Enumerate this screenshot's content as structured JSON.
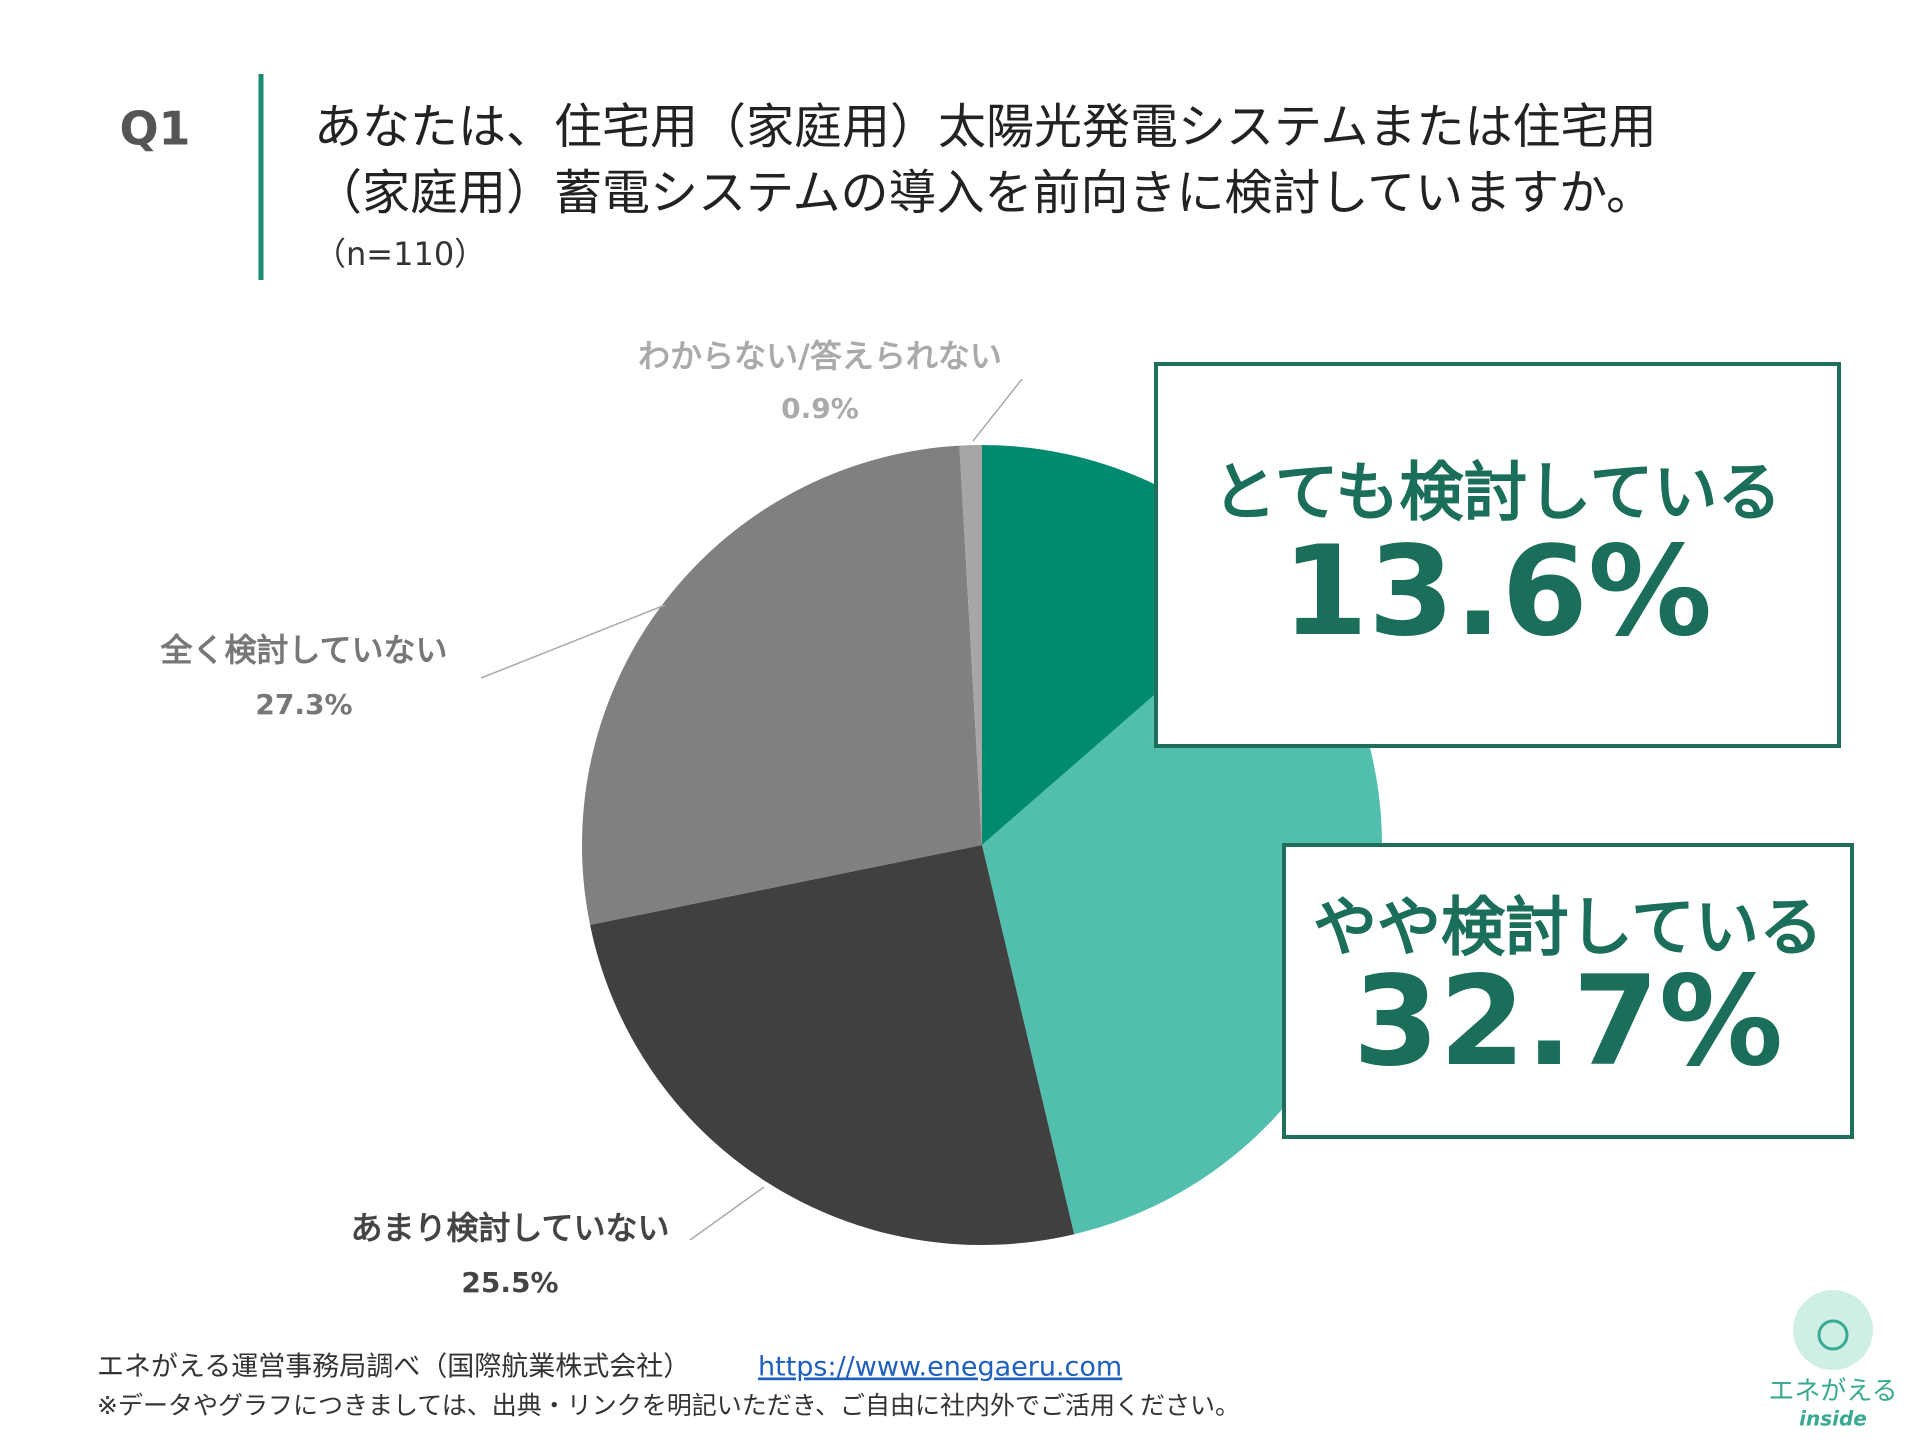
{
  "header": {
    "number": "Q1"
  },
  "chart_data": {
    "type": "pie",
    "title": [
      "あなたは、住宅用（家庭用）太陽光発電システムまたは住宅用",
      "（家庭用）蓄電システムの導入を前向きに検討していますか。"
    ],
    "subtitle": "（n=110）",
    "categories": [
      "とても検討している",
      "やや検討している",
      "あまり検討していない",
      "全く検討していない",
      "わからない/答えられない"
    ],
    "values": [
      13.6,
      32.7,
      25.5,
      27.3,
      0.9
    ],
    "value_labels": [
      "13.6%",
      "32.7%",
      "25.5%",
      "27.3%",
      "0.9%"
    ],
    "colors": [
      "#008a70",
      "#52bfae",
      "#404040",
      "#808080",
      "#a6a6a6"
    ]
  },
  "footer": {
    "source": "エネがえる運営事務局調べ（国際航業株式会社）",
    "url": "https://www.enegaeru.com",
    "note": "※データやグラフにつきましては、出典・リンクを明記いただき、ご自由に社内外でご活用ください。"
  },
  "logo": {
    "name": "エネがえる",
    "sub": "inside"
  }
}
